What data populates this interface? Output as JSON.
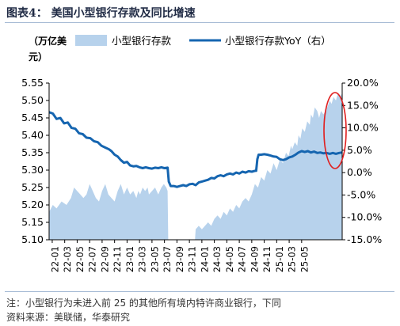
{
  "figure": {
    "title": "图表4：  美国小型银行存款及同比增速",
    "note": "注：小型银行为未进入前 25 的其他所有境内特许商业银行，下同",
    "source": "资料来源：美联储，华泰研究"
  },
  "colors": {
    "area": "#b7d2ec",
    "line": "#1565b0",
    "highlight": "#e02020",
    "axis": "#000000"
  },
  "chart_data": {
    "type": "area",
    "left_axis_unit": "（万亿美元）",
    "legend": [
      {
        "label": "小型银行存款",
        "kind": "area"
      },
      {
        "label": "小型银行存款YoY（右）",
        "kind": "line"
      }
    ],
    "y_left": {
      "min": 5.1,
      "max": 5.55,
      "ticks": [
        "5.10",
        "5.15",
        "5.20",
        "5.25",
        "5.30",
        "5.35",
        "5.40",
        "5.45",
        "5.50",
        "5.55"
      ]
    },
    "y_right": {
      "min": -15,
      "max": 20,
      "ticks": [
        "-15.0%",
        "-10.0%",
        "-5.0%",
        "0.0%",
        "5.0%",
        "10.0%",
        "15.0%",
        "20.0%"
      ]
    },
    "x_ticks": [
      "22-01",
      "22-03",
      "22-05",
      "22-07",
      "22-09",
      "22-11",
      "23-01",
      "23-03",
      "23-05",
      "23-07",
      "23-09",
      "23-11",
      "24-01",
      "24-03",
      "24-05",
      "24-07",
      "24-09",
      "24-11",
      "25-01",
      "25-03",
      "25-05"
    ],
    "x_range": [
      0,
      41
    ],
    "deposits_series": {
      "name": "小型银行存款",
      "axis": "left",
      "points": [
        [
          0,
          5.18
        ],
        [
          0.6,
          5.2
        ],
        [
          1.2,
          5.19
        ],
        [
          2,
          5.21
        ],
        [
          2.8,
          5.2
        ],
        [
          3.5,
          5.22
        ],
        [
          4,
          5.25
        ],
        [
          4.5,
          5.24
        ],
        [
          5,
          5.23
        ],
        [
          5.5,
          5.22
        ],
        [
          6,
          5.23
        ],
        [
          6.5,
          5.26
        ],
        [
          7,
          5.24
        ],
        [
          7.5,
          5.22
        ],
        [
          8,
          5.21
        ],
        [
          8.5,
          5.24
        ],
        [
          9,
          5.26
        ],
        [
          9.5,
          5.23
        ],
        [
          10,
          5.22
        ],
        [
          10.5,
          5.21
        ],
        [
          11,
          5.24
        ],
        [
          11.5,
          5.26
        ],
        [
          12,
          5.23
        ],
        [
          12.5,
          5.25
        ],
        [
          13,
          5.23
        ],
        [
          13.5,
          5.24
        ],
        [
          14,
          5.22
        ],
        [
          14.3,
          5.24
        ],
        [
          14.6,
          5.23
        ],
        [
          15,
          5.25
        ],
        [
          15.4,
          5.24
        ],
        [
          15.8,
          5.25
        ],
        [
          16,
          5.23
        ],
        [
          16.5,
          5.24
        ],
        [
          17,
          5.25
        ],
        [
          17.5,
          5.23
        ],
        [
          18,
          5.25
        ],
        [
          18.4,
          5.26
        ],
        [
          18.8,
          5.25
        ],
        [
          19,
          5.24
        ],
        [
          19.1,
          5.1
        ],
        [
          20,
          5.1
        ],
        [
          21,
          5.1
        ],
        [
          22,
          5.1
        ],
        [
          23,
          5.1
        ],
        [
          23.4,
          5.1
        ],
        [
          23.5,
          5.13
        ],
        [
          24,
          5.14
        ],
        [
          24.5,
          5.13
        ],
        [
          25,
          5.14
        ],
        [
          25.5,
          5.15
        ],
        [
          26,
          5.14
        ],
        [
          26.5,
          5.16
        ],
        [
          27,
          5.17
        ],
        [
          27.5,
          5.16
        ],
        [
          28,
          5.18
        ],
        [
          28.5,
          5.17
        ],
        [
          29,
          5.19
        ],
        [
          29.5,
          5.18
        ],
        [
          30,
          5.2
        ],
        [
          30.5,
          5.19
        ],
        [
          31,
          5.21
        ],
        [
          31.5,
          5.22
        ],
        [
          32,
          5.21
        ],
        [
          32.5,
          5.23
        ],
        [
          33,
          5.26
        ],
        [
          33.5,
          5.25
        ],
        [
          34,
          5.28
        ],
        [
          34.5,
          5.27
        ],
        [
          35,
          5.3
        ],
        [
          35.5,
          5.29
        ],
        [
          36,
          5.32
        ],
        [
          36.5,
          5.3
        ],
        [
          37,
          5.33
        ],
        [
          37.5,
          5.32
        ],
        [
          38,
          5.35
        ],
        [
          38.4,
          5.34
        ],
        [
          38.8,
          5.37
        ],
        [
          39,
          5.36
        ],
        [
          39.4,
          5.38
        ],
        [
          39.8,
          5.37
        ],
        [
          40,
          5.4
        ],
        [
          40.3,
          5.39
        ],
        [
          40.6,
          5.42
        ],
        [
          41,
          5.41
        ],
        [
          41.4,
          5.44
        ],
        [
          41.8,
          5.43
        ],
        [
          42,
          5.46
        ],
        [
          42.3,
          5.45
        ],
        [
          42.6,
          5.48
        ],
        [
          43,
          5.47
        ],
        [
          43.3,
          5.45
        ],
        [
          43.6,
          5.47
        ],
        [
          44,
          5.46
        ],
        [
          44.3,
          5.47
        ],
        [
          44.6,
          5.48
        ],
        [
          45,
          5.5
        ],
        [
          45.3,
          5.49
        ],
        [
          45.6,
          5.51
        ],
        [
          46,
          5.5
        ],
        [
          46.3,
          5.52
        ],
        [
          46.6,
          5.51
        ],
        [
          47,
          5.52
        ]
      ]
    },
    "yoy_series": {
      "name": "小型银行存款YoY（右）",
      "axis": "right",
      "points": [
        [
          0,
          13.5
        ],
        [
          0.6,
          13.2
        ],
        [
          1.2,
          12.0
        ],
        [
          1.8,
          12.2
        ],
        [
          2.4,
          11.0
        ],
        [
          3,
          11.2
        ],
        [
          3.6,
          10.0
        ],
        [
          4.2,
          9.8
        ],
        [
          4.8,
          8.8
        ],
        [
          5.4,
          8.6
        ],
        [
          6,
          7.8
        ],
        [
          6.6,
          7.7
        ],
        [
          7.2,
          7.0
        ],
        [
          7.8,
          6.8
        ],
        [
          8.4,
          6.0
        ],
        [
          9,
          5.6
        ],
        [
          9.6,
          5.2
        ],
        [
          10,
          4.8
        ],
        [
          10.5,
          4.0
        ],
        [
          11,
          3.6
        ],
        [
          11.5,
          2.8
        ],
        [
          12,
          2.2
        ],
        [
          12.5,
          2.4
        ],
        [
          13,
          1.6
        ],
        [
          13.5,
          1.4
        ],
        [
          14,
          1.5
        ],
        [
          14.5,
          1.2
        ],
        [
          15,
          1.0
        ],
        [
          15.5,
          1.2
        ],
        [
          16,
          1.0
        ],
        [
          16.5,
          0.9
        ],
        [
          17,
          1.1
        ],
        [
          17.5,
          1.0
        ],
        [
          18,
          1.2
        ],
        [
          18.5,
          1.0
        ],
        [
          19,
          1.1
        ],
        [
          19.2,
          -2.0
        ],
        [
          19.5,
          -3.0
        ],
        [
          20,
          -3.0
        ],
        [
          20.5,
          -3.2
        ],
        [
          21,
          -3.0
        ],
        [
          21.5,
          -2.8
        ],
        [
          22,
          -3.0
        ],
        [
          22.5,
          -2.6
        ],
        [
          23,
          -2.5
        ],
        [
          23.5,
          -2.8
        ],
        [
          24,
          -2.2
        ],
        [
          24.5,
          -2.0
        ],
        [
          25,
          -1.8
        ],
        [
          25.5,
          -1.6
        ],
        [
          26,
          -1.2
        ],
        [
          26.5,
          -1.3
        ],
        [
          27,
          -0.8
        ],
        [
          27.5,
          -0.6
        ],
        [
          28,
          -0.8
        ],
        [
          28.5,
          -0.4
        ],
        [
          29,
          -0.2
        ],
        [
          29.5,
          -0.4
        ],
        [
          30,
          0.0
        ],
        [
          30.5,
          -0.2
        ],
        [
          31,
          0.2
        ],
        [
          31.5,
          0.0
        ],
        [
          32,
          0.3
        ],
        [
          32.5,
          0.2
        ],
        [
          33,
          0.4
        ],
        [
          33.2,
          0.4
        ],
        [
          33.4,
          3.0
        ],
        [
          33.6,
          4.0
        ],
        [
          34,
          4.0
        ],
        [
          34.5,
          4.1
        ],
        [
          35,
          4.0
        ],
        [
          35.5,
          3.8
        ],
        [
          36,
          3.6
        ],
        [
          36.5,
          3.5
        ],
        [
          37,
          3.0
        ],
        [
          37.5,
          2.8
        ],
        [
          38,
          3.0
        ],
        [
          38.5,
          3.4
        ],
        [
          39,
          3.6
        ],
        [
          39.5,
          4.0
        ],
        [
          40,
          4.5
        ],
        [
          40.5,
          4.8
        ],
        [
          41,
          4.6
        ],
        [
          41.5,
          4.8
        ],
        [
          42,
          4.5
        ],
        [
          42.5,
          4.7
        ],
        [
          43,
          4.4
        ],
        [
          43.5,
          4.5
        ],
        [
          44,
          4.3
        ],
        [
          44.5,
          4.4
        ],
        [
          45,
          4.2
        ],
        [
          45.5,
          4.4
        ],
        [
          46,
          4.2
        ],
        [
          46.5,
          4.4
        ],
        [
          47,
          4.5
        ]
      ]
    }
  }
}
